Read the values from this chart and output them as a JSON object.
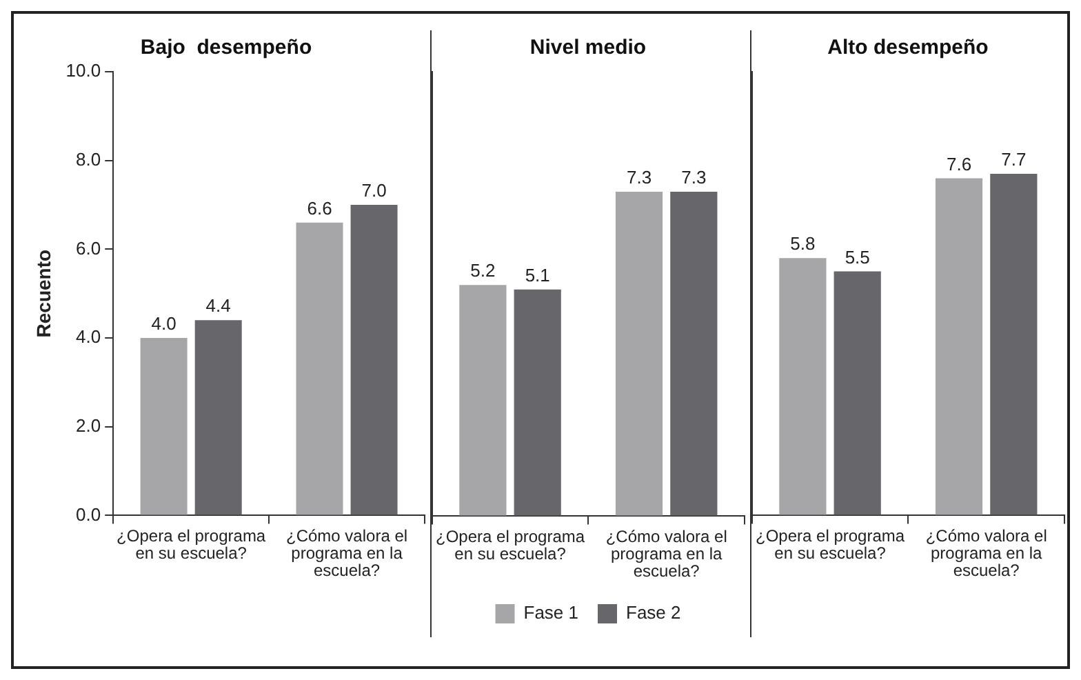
{
  "chart_data": [
    {
      "type": "bar",
      "title": "Bajo  desempeño",
      "ylabel": "Recuento",
      "categories": [
        "¿Opera el programa en su escuela?",
        "¿Cómo valora el programa en la escuela?"
      ],
      "ylim": [
        0,
        10
      ],
      "yticks": [
        {
          "value": 0,
          "label": "0.0"
        },
        {
          "value": 2,
          "label": "2.0"
        },
        {
          "value": 4,
          "label": "4.0"
        },
        {
          "value": 6,
          "label": "6.0"
        },
        {
          "value": 8,
          "label": "8.0"
        },
        {
          "value": 10,
          "label": "10.0"
        }
      ],
      "grid": false,
      "legend": false,
      "series": [
        {
          "color": "#a6a6a8",
          "values": [
            4.0,
            6.6
          ],
          "value_labels": [
            "4.0",
            "6.6"
          ]
        },
        {
          "color": "#67676b",
          "values": [
            4.4,
            7.0
          ],
          "value_labels": [
            "4.4",
            "7.0"
          ]
        }
      ]
    },
    {
      "type": "bar",
      "title": "Nivel medio",
      "categories": [
        "¿Opera el programa en su escuela?",
        "¿Cómo valora el programa en la escuela?"
      ],
      "ylim": [
        0,
        10
      ],
      "tick_labels": "x",
      "grid": false,
      "legend": "bottom",
      "series": [
        {
          "name": "Fase 1",
          "color": "#a6a6a8",
          "values": [
            5.2,
            7.3
          ],
          "value_labels": [
            "5.2",
            "7.3"
          ]
        },
        {
          "name": "Fase 2",
          "color": "#67676b",
          "values": [
            5.1,
            7.3
          ],
          "value_labels": [
            "5.1",
            "7.3"
          ]
        }
      ]
    },
    {
      "type": "bar",
      "title": "Alto desempeño",
      "categories": [
        "¿Opera el programa en su escuela?",
        "¿Cómo valora el programa en la escuela?"
      ],
      "ylim": [
        0,
        10
      ],
      "tick_labels": "x",
      "grid": false,
      "legend": false,
      "series": [
        {
          "color": "#a6a6a8",
          "values": [
            5.8,
            7.6
          ],
          "value_labels": [
            "5.8",
            "7.6"
          ]
        },
        {
          "color": "#67676b",
          "values": [
            5.5,
            7.7
          ],
          "value_labels": [
            "5.5",
            "7.7"
          ]
        }
      ]
    }
  ]
}
